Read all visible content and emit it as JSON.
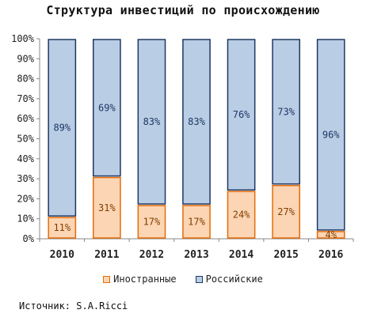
{
  "chart_data": {
    "type": "bar",
    "stacked": true,
    "title": "Структура инвестиций по происхождению",
    "categories": [
      "2010",
      "2011",
      "2012",
      "2013",
      "2014",
      "2015",
      "2016"
    ],
    "series": [
      {
        "name": "Иностранные",
        "values": [
          11,
          31,
          17,
          17,
          24,
          27,
          4
        ],
        "labels": [
          "11%",
          "31%",
          "17%",
          "17%",
          "24%",
          "27%",
          "4%"
        ],
        "fill": "#fcd5b4",
        "stroke": "#e46c0a",
        "label_color": "#7f3f00"
      },
      {
        "name": "Российские",
        "values": [
          89,
          69,
          83,
          83,
          76,
          73,
          96
        ],
        "labels": [
          "89%",
          "69%",
          "83%",
          "83%",
          "76%",
          "73%",
          "96%"
        ],
        "fill": "#b9cde5",
        "stroke": "#1f3864",
        "label_color": "#1f3864"
      }
    ],
    "y_ticks": [
      "0%",
      "10%",
      "20%",
      "30%",
      "40%",
      "50%",
      "60%",
      "70%",
      "80%",
      "90%",
      "100%"
    ],
    "ylim": [
      0,
      100
    ],
    "grid": false,
    "legend": "bottom"
  },
  "source": "Источник: S.A.Ricci"
}
